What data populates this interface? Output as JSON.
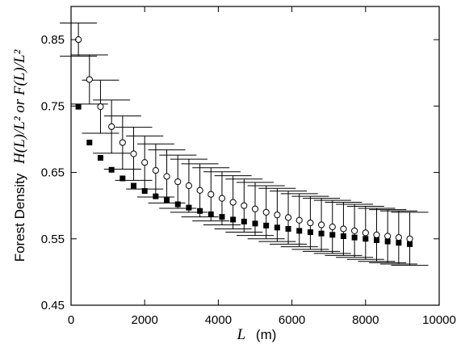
{
  "chart_data": {
    "type": "scatter",
    "title": "",
    "xlabel_symbol": "L",
    "xlabel_unit": "(m)",
    "ylabel_prefix": "Forest Density",
    "ylabel_expr": "H(L)/L² or F(L)/L²",
    "xlim": [
      0,
      10000
    ],
    "ylim": [
      0.45,
      0.9
    ],
    "xticks": [
      0,
      2000,
      4000,
      6000,
      8000,
      10000
    ],
    "yticks": [
      0.45,
      0.55,
      0.65,
      0.75,
      0.85
    ],
    "x": [
      200,
      500,
      800,
      1100,
      1400,
      1700,
      2000,
      2300,
      2600,
      2900,
      3200,
      3500,
      3800,
      4100,
      4400,
      4700,
      5000,
      5300,
      5600,
      5900,
      6200,
      6500,
      6800,
      7100,
      7400,
      7700,
      8000,
      8300,
      8600,
      8900,
      9200
    ],
    "series": [
      {
        "marker": "open-circle",
        "values": [
          0.85,
          0.79,
          0.749,
          0.719,
          0.695,
          0.678,
          0.665,
          0.653,
          0.644,
          0.636,
          0.63,
          0.623,
          0.617,
          0.611,
          0.605,
          0.6,
          0.595,
          0.59,
          0.586,
          0.582,
          0.578,
          0.574,
          0.571,
          0.568,
          0.565,
          0.562,
          0.559,
          0.556,
          0.554,
          0.552,
          0.55
        ],
        "error": [
          0.025,
          0.037,
          0.04,
          0.04,
          0.04,
          0.04,
          0.04,
          0.04,
          0.04,
          0.04,
          0.04,
          0.04,
          0.04,
          0.04,
          0.04,
          0.04,
          0.04,
          0.04,
          0.04,
          0.04,
          0.04,
          0.04,
          0.04,
          0.04,
          0.04,
          0.04,
          0.04,
          0.04,
          0.04,
          0.04,
          0.04
        ]
      },
      {
        "marker": "filled-square",
        "values": [
          0.749,
          0.695,
          0.672,
          0.654,
          0.641,
          0.63,
          0.622,
          0.614,
          0.608,
          0.602,
          0.597,
          0.592,
          0.587,
          0.583,
          0.579,
          0.576,
          0.573,
          0.57,
          0.567,
          0.565,
          0.562,
          0.56,
          0.558,
          0.556,
          0.554,
          0.552,
          0.55,
          0.548,
          0.546,
          0.544,
          0.542
        ]
      }
    ],
    "grid": false,
    "legend": "none"
  }
}
